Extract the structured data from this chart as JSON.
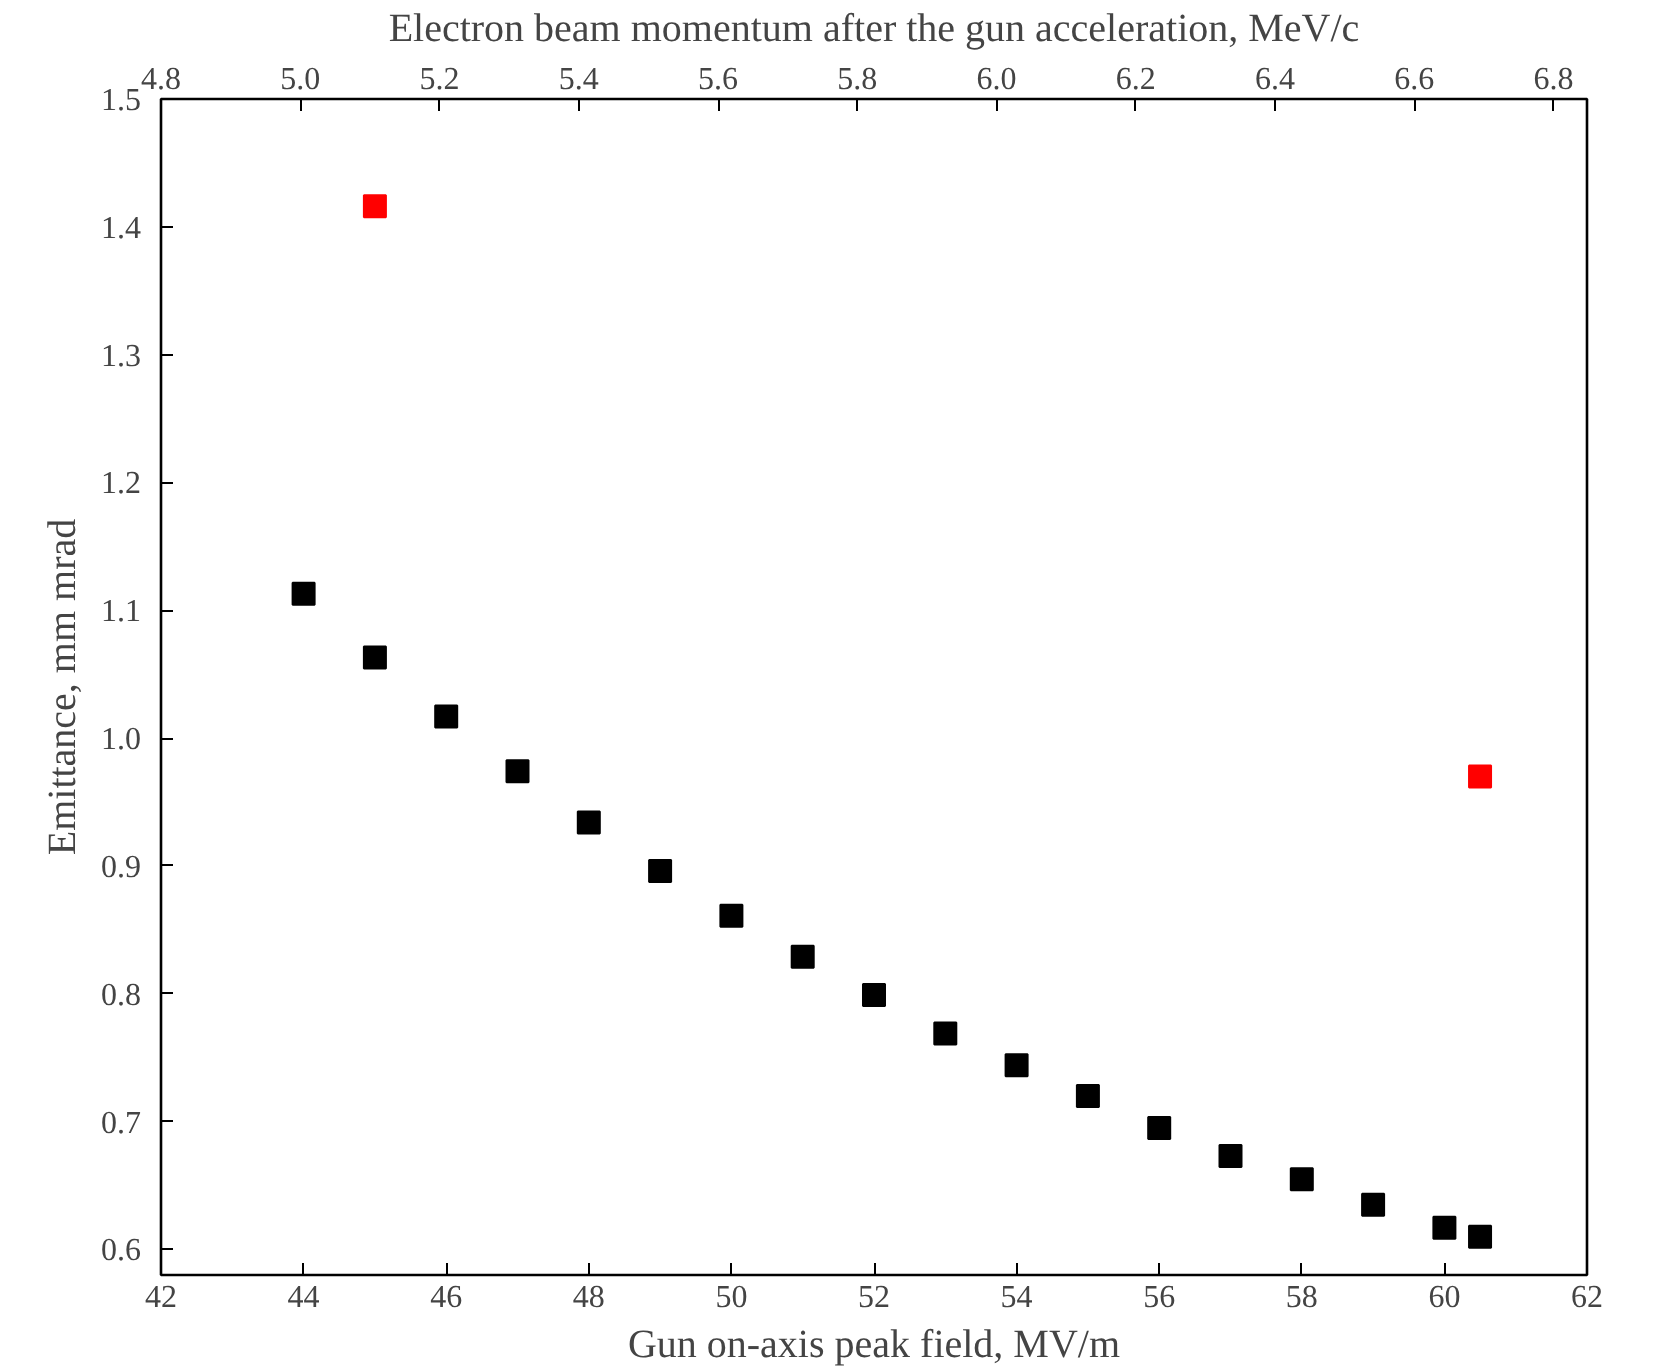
{
  "chart_data": {
    "type": "scatter",
    "xlabel": "Gun on-axis peak field, MV/m",
    "ylabel": "Emittance, mm mrad",
    "x2label": "Electron beam momentum after the gun acceleration, MeV/c",
    "xlim": [
      42,
      62
    ],
    "xticks": [
      42,
      44,
      46,
      48,
      50,
      52,
      54,
      56,
      58,
      60,
      62
    ],
    "ylim": [
      0.58,
      1.5
    ],
    "yticks": [
      {
        "value": 0.6,
        "label": "0.6"
      },
      {
        "value": 0.7,
        "label": "0.7"
      },
      {
        "value": 0.8,
        "label": "0.8"
      },
      {
        "value": 0.9,
        "label": "0.9"
      },
      {
        "value": 1.0,
        "label": "1.0"
      },
      {
        "value": 1.1,
        "label": "1.1"
      },
      {
        "value": 1.2,
        "label": "1.2"
      },
      {
        "value": 1.3,
        "label": "1.3"
      },
      {
        "value": 1.4,
        "label": "1.4"
      },
      {
        "value": 1.5,
        "label": "1.5"
      }
    ],
    "x2lim": [
      4.8,
      6.848
    ],
    "x2ticks": [
      {
        "value": 4.8,
        "label": "4.8"
      },
      {
        "value": 5.0,
        "label": "5.0"
      },
      {
        "value": 5.2,
        "label": "5.2"
      },
      {
        "value": 5.4,
        "label": "5.4"
      },
      {
        "value": 5.6,
        "label": "5.6"
      },
      {
        "value": 5.8,
        "label": "5.8"
      },
      {
        "value": 6.0,
        "label": "6.0"
      },
      {
        "value": 6.2,
        "label": "6.2"
      },
      {
        "value": 6.4,
        "label": "6.4"
      },
      {
        "value": 6.6,
        "label": "6.6"
      },
      {
        "value": 6.8,
        "label": "6.8"
      }
    ],
    "marker": "square",
    "grid": false,
    "series": [
      {
        "color": "#000000",
        "x": [
          44,
          45,
          46,
          47,
          48,
          49,
          50,
          51,
          52,
          53,
          54,
          55,
          56,
          57,
          58,
          59,
          60,
          60.5
        ],
        "values": [
          1.113,
          1.063,
          1.017,
          0.974,
          0.934,
          0.896,
          0.861,
          0.829,
          0.799,
          0.769,
          0.744,
          0.72,
          0.695,
          0.673,
          0.655,
          0.635,
          0.617,
          0.61
        ]
      },
      {
        "color": "#ff0000",
        "x": [
          45,
          60.5
        ],
        "values": [
          1.416,
          0.97
        ]
      }
    ]
  }
}
